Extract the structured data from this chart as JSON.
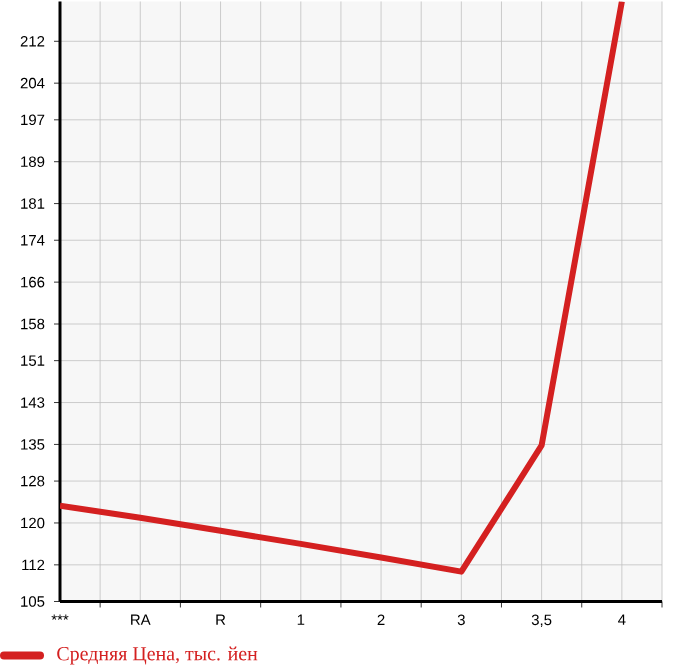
{
  "chart_data": {
    "type": "line",
    "categories": [
      "***",
      "RA",
      "R",
      "1",
      "2",
      "3",
      "3,5",
      "4"
    ],
    "series": [
      {
        "name": "Средняя Цена, тыс. йен",
        "color": "#d42020",
        "values": [
          123.3,
          121.0,
          118.5,
          116.0,
          113.4,
          110.7,
          134.8,
          219.6
        ]
      }
    ],
    "ylim": [
      105,
      219.6
    ],
    "yticks": [
      105,
      112,
      120,
      128,
      135,
      143,
      151,
      158,
      166,
      174,
      181,
      189,
      197,
      204,
      212
    ],
    "grid": true,
    "legend": "bottom left",
    "marker": "none",
    "line_style": "solid"
  }
}
